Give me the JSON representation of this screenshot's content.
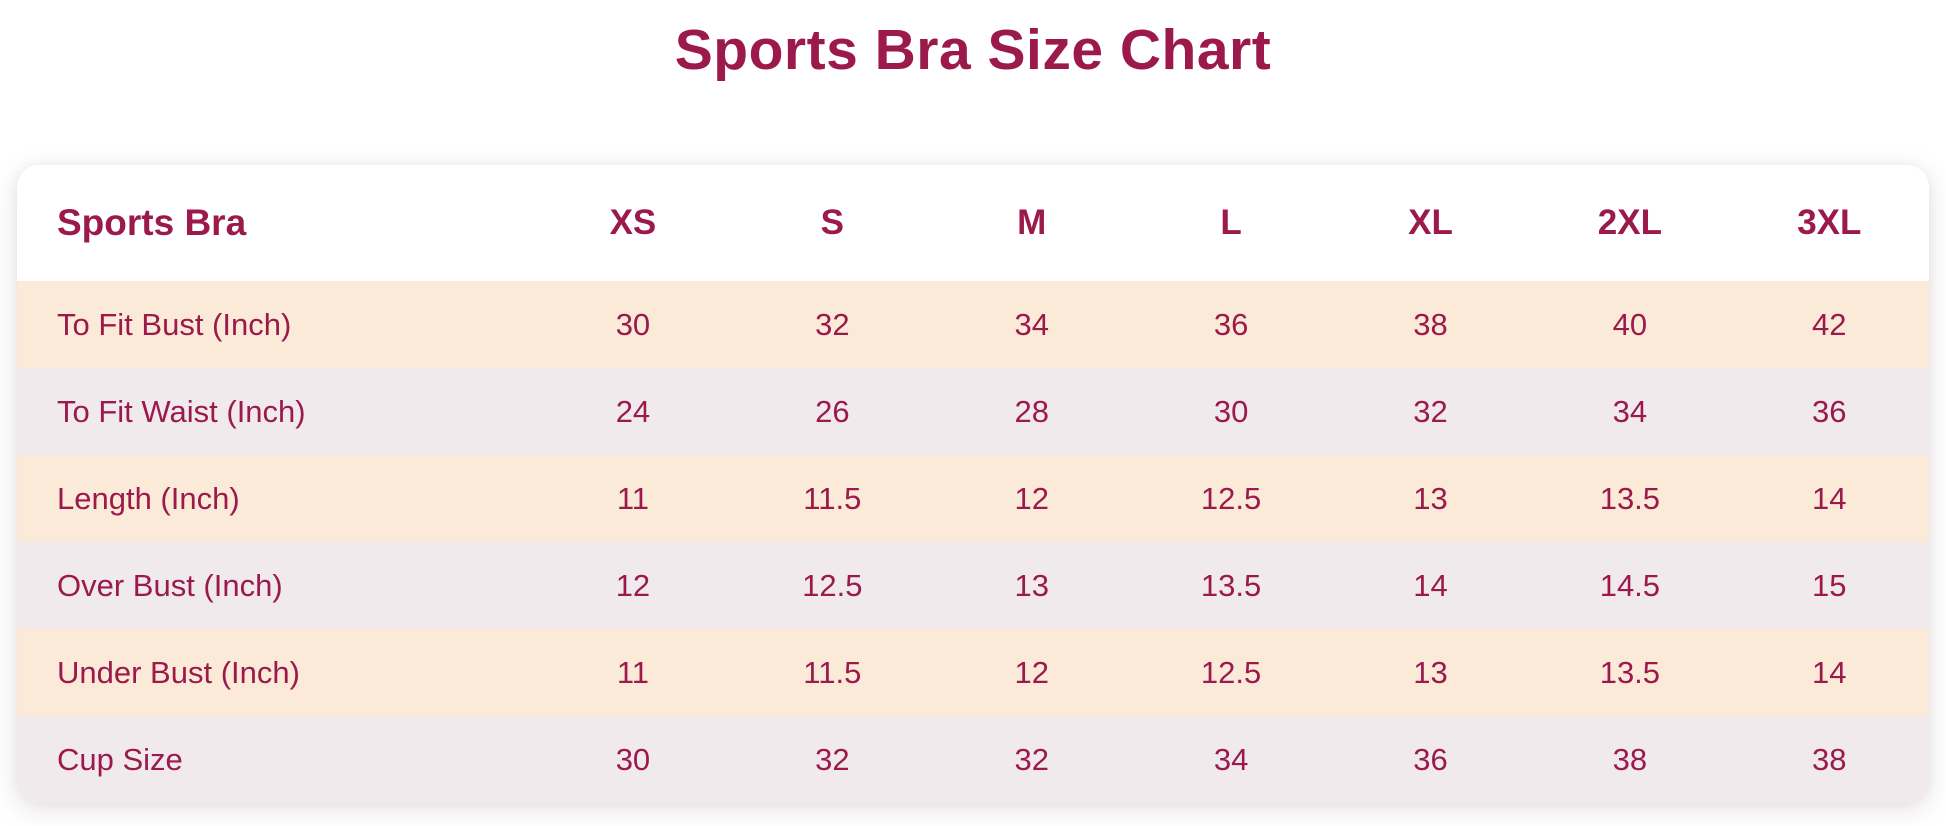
{
  "page": {
    "title": "Sports Bra Size Chart"
  },
  "colors": {
    "accent": "#9b1a4b",
    "row_odd_peach": "#fcead9",
    "row_even_lavender": "#f0eaed",
    "header_bg": "#ffffff",
    "page_bg": "#ffffff"
  },
  "chart_data": {
    "type": "table",
    "title": "Sports Bra Size Chart",
    "columns": [
      "Sports Bra",
      "XS",
      "S",
      "M",
      "L",
      "XL",
      "2XL",
      "3XL"
    ],
    "rows": [
      {
        "label": "To Fit Bust (Inch)",
        "values": [
          "30",
          "32",
          "34",
          "36",
          "38",
          "40",
          "42"
        ]
      },
      {
        "label": "To Fit Waist (Inch)",
        "values": [
          "24",
          "26",
          "28",
          "30",
          "32",
          "34",
          "36"
        ]
      },
      {
        "label": "Length (Inch)",
        "values": [
          "11",
          "11.5",
          "12",
          "12.5",
          "13",
          "13.5",
          "14"
        ]
      },
      {
        "label": "Over Bust (Inch)",
        "values": [
          "12",
          "12.5",
          "13",
          "13.5",
          "14",
          "14.5",
          "15"
        ]
      },
      {
        "label": "Under Bust (Inch)",
        "values": [
          "11",
          "11.5",
          "12",
          "12.5",
          "13",
          "13.5",
          "14"
        ]
      },
      {
        "label": "Cup Size",
        "values": [
          "30",
          "32",
          "32",
          "34",
          "36",
          "38",
          "38"
        ]
      }
    ],
    "layout": {
      "row_striping": [
        "peach",
        "lavender"
      ],
      "first_column_align": "left",
      "value_columns_align": "center"
    }
  }
}
